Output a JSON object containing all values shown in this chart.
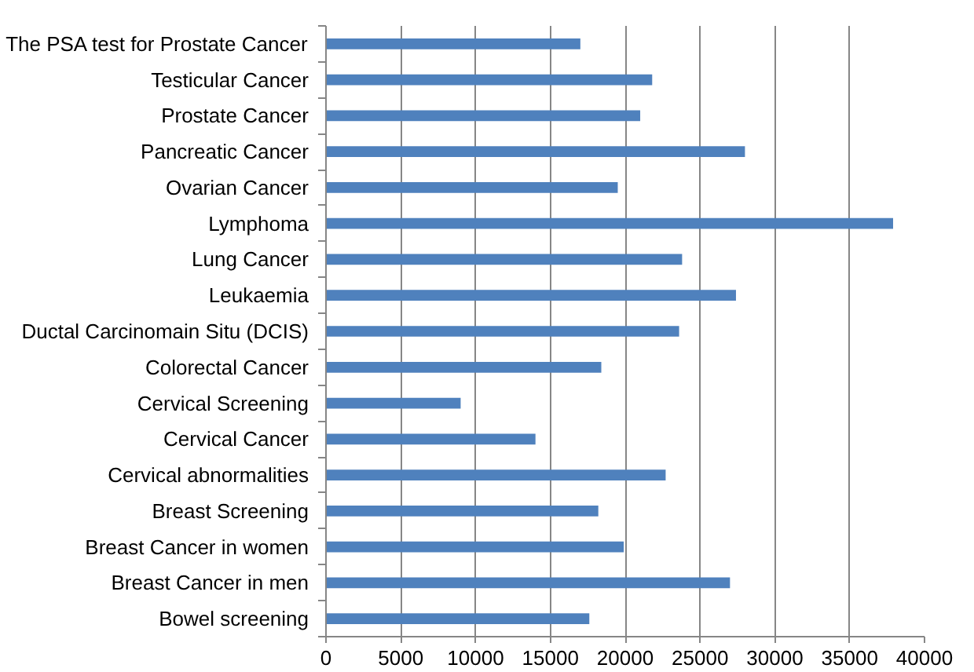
{
  "chart_data": {
    "type": "bar",
    "orientation": "horizontal",
    "categories": [
      "The PSA test for Prostate Cancer",
      "Testicular Cancer",
      "Prostate Cancer",
      "Pancreatic Cancer",
      "Ovarian Cancer",
      "Lymphoma",
      "Lung Cancer",
      "Leukaemia",
      "Ductal Carcinomain Situ (DCIS)",
      "Colorectal Cancer",
      "Cervical Screening",
      "Cervical Cancer",
      "Cervical abnormalities",
      "Breast Screening",
      "Breast Cancer in women",
      "Breast Cancer in men",
      "Bowel screening"
    ],
    "values": [
      17000,
      21800,
      21000,
      28000,
      19500,
      37900,
      23800,
      27400,
      23600,
      18400,
      9000,
      14000,
      22700,
      18200,
      19900,
      27000,
      17600
    ],
    "color": "#4f81bd",
    "xlim": [
      0,
      40000
    ],
    "xticks": [
      0,
      5000,
      10000,
      15000,
      20000,
      25000,
      30000,
      35000,
      40000
    ],
    "grid": "x"
  }
}
